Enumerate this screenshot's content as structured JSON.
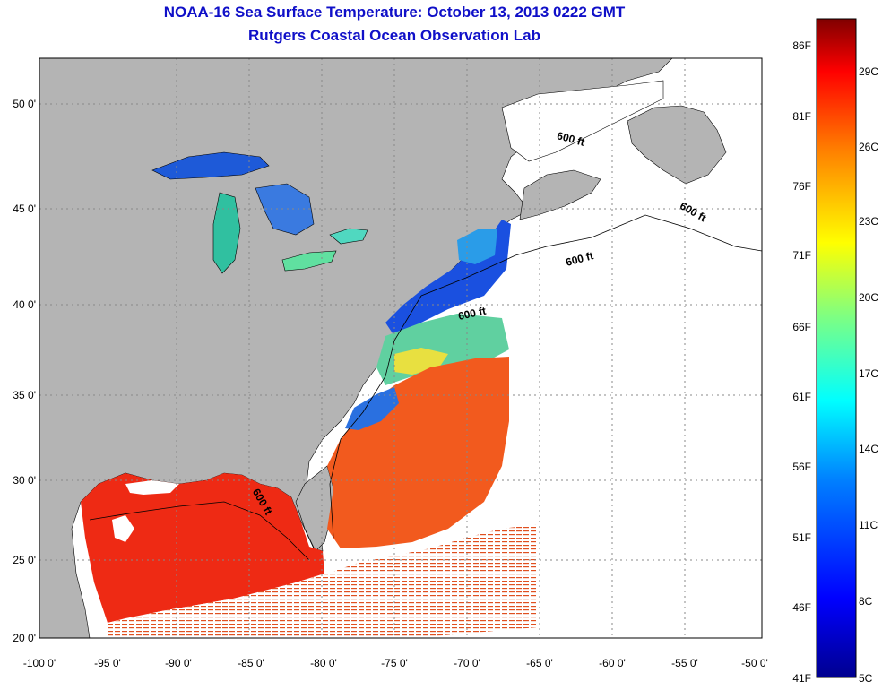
{
  "title": "NOAA-16 Sea Surface Temperature:  October 13, 2013 0222 GMT",
  "subtitle": "Rutgers Coastal Ocean Observation Lab",
  "x_ticks": [
    "-100 0'",
    "-95 0'",
    "-90 0'",
    "-85 0'",
    "-80 0'",
    "-75 0'",
    "-70 0'",
    "-65 0'",
    "-60 0'",
    "-55 0'",
    "-50 0'"
  ],
  "y_ticks": [
    "20 0'",
    "25 0'",
    "30 0'",
    "35 0'",
    "40 0'",
    "45 0'",
    "50 0'"
  ],
  "contour_label": "600 ft",
  "colorbar": {
    "fahrenheit": [
      "86F",
      "81F",
      "76F",
      "71F",
      "66F",
      "61F",
      "56F",
      "51F",
      "46F",
      "41F"
    ],
    "celsius": [
      "29C",
      "26C",
      "23C",
      "20C",
      "17C",
      "14C",
      "11C",
      "8C",
      "5C"
    ],
    "colors": [
      "#00008f",
      "#0000ff",
      "#0080ff",
      "#00ffff",
      "#80ff80",
      "#ffff00",
      "#ff8000",
      "#ff0000",
      "#800000"
    ]
  },
  "colors": {
    "land": "#b4b4b4",
    "ocean_nodata": "#ffffff",
    "title": "#1010c8"
  }
}
